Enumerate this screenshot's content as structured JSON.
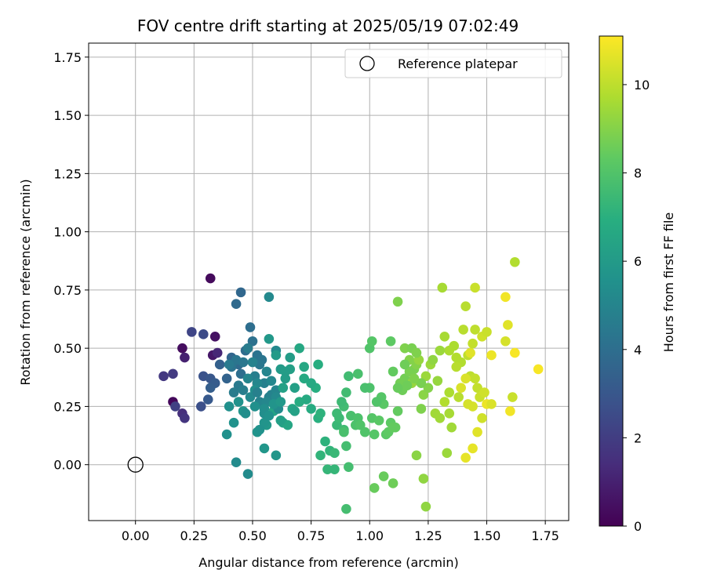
{
  "chart_data": {
    "type": "scatter",
    "title": "FOV centre drift starting at 2025/05/19 07:02:49",
    "xlabel": "Angular distance from reference (arcmin)",
    "ylabel": "Rotation from reference (arcmin)",
    "xlim": [
      -0.2,
      1.85
    ],
    "ylim": [
      -0.24,
      1.81
    ],
    "x_ticks": [
      0.0,
      0.25,
      0.5,
      0.75,
      1.0,
      1.25,
      1.5,
      1.75
    ],
    "y_ticks": [
      0.0,
      0.25,
      0.5,
      0.75,
      1.0,
      1.25,
      1.5,
      1.75
    ],
    "x_tick_labels": [
      "0.00",
      "0.25",
      "0.50",
      "0.75",
      "1.00",
      "1.25",
      "1.50",
      "1.75"
    ],
    "y_tick_labels": [
      "0.00",
      "0.25",
      "0.50",
      "0.75",
      "1.00",
      "1.25",
      "1.50",
      "1.75"
    ],
    "grid": true,
    "legend": {
      "placement": "upper-right",
      "entries": [
        "Reference platepar"
      ]
    },
    "reference_point": {
      "name": "Reference platepar",
      "x": 0.0,
      "y": 0.0
    },
    "colorbar": {
      "label": "Hours from first FF file",
      "range": [
        0,
        11.1
      ],
      "ticks": [
        0,
        2,
        4,
        6,
        8,
        10
      ],
      "tick_labels": [
        "0",
        "2",
        "4",
        "6",
        "8",
        "10"
      ],
      "colormap": "viridis"
    },
    "points": [
      [
        0.16,
        0.27,
        0.2
      ],
      [
        0.32,
        0.8,
        0.3
      ],
      [
        0.2,
        0.5,
        0.4
      ],
      [
        0.34,
        0.55,
        0.5
      ],
      [
        0.33,
        0.47,
        0.7
      ],
      [
        0.21,
        0.46,
        1.0
      ],
      [
        0.35,
        0.48,
        1.2
      ],
      [
        0.2,
        0.22,
        1.5
      ],
      [
        0.21,
        0.2,
        1.7
      ],
      [
        0.12,
        0.38,
        1.8
      ],
      [
        0.16,
        0.39,
        1.9
      ],
      [
        0.17,
        0.25,
        2.1
      ],
      [
        0.24,
        0.57,
        2.3
      ],
      [
        0.29,
        0.56,
        2.5
      ],
      [
        0.28,
        0.25,
        2.7
      ],
      [
        0.29,
        0.38,
        2.8
      ],
      [
        0.32,
        0.37,
        3.0
      ],
      [
        0.31,
        0.28,
        3.1
      ],
      [
        0.34,
        0.35,
        3.2
      ],
      [
        0.32,
        0.33,
        3.3
      ],
      [
        0.36,
        0.43,
        3.4
      ],
      [
        0.39,
        0.37,
        3.5
      ],
      [
        0.41,
        0.46,
        3.6
      ],
      [
        0.45,
        0.74,
        3.7
      ],
      [
        0.43,
        0.69,
        3.8
      ],
      [
        0.44,
        0.43,
        3.8
      ],
      [
        0.47,
        0.49,
        3.9
      ],
      [
        0.45,
        0.39,
        4.0
      ],
      [
        0.49,
        0.59,
        4.0
      ],
      [
        0.5,
        0.53,
        4.1
      ],
      [
        0.52,
        0.47,
        4.2
      ],
      [
        0.41,
        0.42,
        4.2
      ],
      [
        0.43,
        0.45,
        4.3
      ],
      [
        0.54,
        0.45,
        4.3
      ],
      [
        0.53,
        0.43,
        4.4
      ],
      [
        0.46,
        0.44,
        4.4
      ],
      [
        0.4,
        0.43,
        4.5
      ],
      [
        0.44,
        0.34,
        4.5
      ],
      [
        0.48,
        0.5,
        4.6
      ],
      [
        0.42,
        0.31,
        4.6
      ],
      [
        0.46,
        0.32,
        4.7
      ],
      [
        0.51,
        0.38,
        4.7
      ],
      [
        0.55,
        0.35,
        4.8
      ],
      [
        0.57,
        0.29,
        4.8
      ],
      [
        0.53,
        0.27,
        4.9
      ],
      [
        0.58,
        0.3,
        4.9
      ],
      [
        0.54,
        0.26,
        5.0
      ],
      [
        0.6,
        0.32,
        5.0
      ],
      [
        0.52,
        0.35,
        5.1
      ],
      [
        0.56,
        0.27,
        5.1
      ],
      [
        0.6,
        0.49,
        5.2
      ],
      [
        0.57,
        0.72,
        5.2
      ],
      [
        0.43,
        0.01,
        5.3
      ],
      [
        0.48,
        -0.04,
        5.3
      ],
      [
        0.55,
        0.24,
        5.4
      ],
      [
        0.51,
        0.32,
        5.4
      ],
      [
        0.4,
        0.25,
        5.5
      ],
      [
        0.39,
        0.13,
        5.5
      ],
      [
        0.42,
        0.18,
        5.6
      ],
      [
        0.44,
        0.27,
        5.6
      ],
      [
        0.46,
        0.23,
        5.7
      ],
      [
        0.52,
        0.14,
        5.7
      ],
      [
        0.55,
        0.07,
        5.8
      ],
      [
        0.6,
        0.04,
        5.8
      ],
      [
        0.56,
        0.17,
        5.9
      ],
      [
        0.57,
        0.54,
        5.9
      ],
      [
        0.6,
        0.47,
        6.0
      ],
      [
        0.62,
        0.41,
        6.0
      ],
      [
        0.64,
        0.37,
        6.1
      ],
      [
        0.66,
        0.46,
        6.1
      ],
      [
        0.68,
        0.33,
        6.2
      ],
      [
        0.66,
        0.41,
        6.2
      ],
      [
        0.63,
        0.33,
        6.3
      ],
      [
        0.61,
        0.26,
        6.3
      ],
      [
        0.59,
        0.23,
        6.4
      ],
      [
        0.63,
        0.18,
        6.4
      ],
      [
        0.65,
        0.17,
        6.5
      ],
      [
        0.67,
        0.24,
        6.5
      ],
      [
        0.7,
        0.5,
        6.6
      ],
      [
        0.72,
        0.42,
        6.6
      ],
      [
        0.72,
        0.37,
        6.7
      ],
      [
        0.73,
        0.28,
        6.7
      ],
      [
        0.7,
        0.27,
        6.8
      ],
      [
        0.75,
        0.24,
        6.8
      ],
      [
        0.77,
        0.33,
        6.9
      ],
      [
        0.78,
        0.43,
        6.9
      ],
      [
        0.78,
        0.2,
        7.0
      ],
      [
        0.79,
        0.22,
        7.1
      ],
      [
        0.81,
        0.1,
        7.1
      ],
      [
        0.79,
        0.04,
        7.2
      ],
      [
        0.83,
        0.06,
        7.2
      ],
      [
        0.82,
        -0.02,
        7.3
      ],
      [
        0.85,
        -0.02,
        7.3
      ],
      [
        0.85,
        0.05,
        7.4
      ],
      [
        0.86,
        0.17,
        7.4
      ],
      [
        0.87,
        0.2,
        7.5
      ],
      [
        0.86,
        0.22,
        7.5
      ],
      [
        0.89,
        0.25,
        7.6
      ],
      [
        0.89,
        0.15,
        7.6
      ],
      [
        0.9,
        0.08,
        7.7
      ],
      [
        0.91,
        -0.01,
        7.7
      ],
      [
        0.9,
        -0.19,
        7.7
      ],
      [
        0.89,
        0.14,
        7.8
      ],
      [
        0.92,
        0.21,
        7.8
      ],
      [
        0.94,
        0.17,
        7.9
      ],
      [
        0.95,
        0.2,
        7.9
      ],
      [
        0.96,
        0.17,
        8.0
      ],
      [
        0.98,
        0.14,
        8.0
      ],
      [
        1.01,
        0.2,
        8.1
      ],
      [
        1.02,
        0.13,
        8.1
      ],
      [
        1.04,
        0.19,
        8.2
      ],
      [
        1.07,
        0.13,
        8.2
      ],
      [
        1.08,
        0.14,
        8.3
      ],
      [
        1.09,
        0.18,
        8.3
      ],
      [
        1.1,
        0.16,
        8.4
      ],
      [
        1.11,
        0.16,
        8.4
      ],
      [
        1.02,
        -0.1,
        8.5
      ],
      [
        1.06,
        -0.05,
        8.5
      ],
      [
        1.1,
        -0.08,
        8.6
      ],
      [
        1.14,
        0.32,
        8.6
      ],
      [
        1.13,
        0.35,
        8.7
      ],
      [
        1.15,
        0.37,
        8.7
      ],
      [
        1.17,
        0.4,
        8.8
      ],
      [
        1.19,
        0.41,
        8.8
      ],
      [
        1.12,
        0.7,
        8.9
      ],
      [
        1.15,
        0.5,
        8.9
      ],
      [
        1.17,
        0.45,
        9.0
      ],
      [
        1.2,
        0.43,
        9.0
      ],
      [
        1.23,
        0.3,
        9.1
      ],
      [
        1.2,
        0.04,
        9.1
      ],
      [
        1.23,
        -0.06,
        9.2
      ],
      [
        1.24,
        -0.18,
        9.2
      ],
      [
        1.18,
        0.35,
        9.3
      ],
      [
        1.21,
        0.45,
        9.3
      ],
      [
        1.24,
        0.38,
        9.4
      ],
      [
        1.26,
        0.43,
        9.4
      ],
      [
        1.28,
        0.22,
        9.5
      ],
      [
        1.3,
        0.2,
        9.5
      ],
      [
        1.31,
        0.76,
        9.6
      ],
      [
        1.32,
        0.55,
        9.6
      ],
      [
        1.34,
        0.49,
        9.7
      ],
      [
        1.36,
        0.51,
        9.7
      ],
      [
        1.37,
        0.46,
        9.8
      ],
      [
        1.39,
        0.44,
        9.8
      ],
      [
        1.4,
        0.58,
        9.9
      ],
      [
        1.41,
        0.68,
        9.9
      ],
      [
        1.42,
        0.47,
        10.0
      ],
      [
        1.43,
        0.38,
        10.0
      ],
      [
        1.45,
        0.37,
        10.1
      ],
      [
        1.46,
        0.33,
        10.1
      ],
      [
        1.47,
        0.29,
        10.2
      ],
      [
        1.45,
        0.76,
        10.2
      ],
      [
        1.48,
        0.55,
        10.3
      ],
      [
        1.49,
        0.31,
        10.3
      ],
      [
        1.44,
        0.25,
        10.4
      ],
      [
        1.42,
        0.26,
        10.4
      ],
      [
        1.39,
        0.33,
        10.5
      ],
      [
        1.41,
        0.37,
        10.5
      ],
      [
        1.43,
        0.48,
        10.6
      ],
      [
        1.46,
        0.14,
        10.6
      ],
      [
        1.44,
        0.07,
        10.7
      ],
      [
        1.41,
        0.03,
        10.7
      ],
      [
        1.5,
        0.26,
        10.8
      ],
      [
        1.52,
        0.47,
        10.8
      ],
      [
        1.58,
        0.72,
        10.9
      ],
      [
        1.6,
        0.23,
        10.9
      ],
      [
        1.62,
        0.48,
        11.0
      ],
      [
        1.72,
        0.41,
        11.0
      ],
      [
        1.62,
        0.87,
        9.8
      ],
      [
        1.61,
        0.29,
        10.2
      ],
      [
        1.58,
        0.53,
        10.4
      ],
      [
        1.59,
        0.6,
        10.6
      ],
      [
        1.34,
        0.22,
        9.6
      ],
      [
        1.33,
        0.05,
        9.4
      ],
      [
        1.35,
        0.16,
        9.5
      ],
      [
        1.37,
        0.42,
        9.9
      ],
      [
        1.38,
        0.29,
        9.9
      ],
      [
        1.44,
        0.52,
        10.1
      ],
      [
        1.45,
        0.58,
        10.0
      ],
      [
        1.5,
        0.57,
        10.2
      ],
      [
        1.48,
        0.2,
        10.3
      ],
      [
        1.52,
        0.26,
        10.5
      ],
      [
        1.34,
        0.31,
        9.7
      ],
      [
        1.32,
        0.27,
        9.8
      ],
      [
        1.3,
        0.49,
        9.4
      ],
      [
        1.27,
        0.45,
        9.2
      ],
      [
        1.29,
        0.36,
        9.3
      ],
      [
        1.25,
        0.33,
        9.0
      ],
      [
        1.22,
        0.24,
        8.9
      ],
      [
        1.22,
        0.35,
        8.8
      ],
      [
        1.16,
        0.34,
        8.6
      ],
      [
        1.12,
        0.33,
        8.5
      ],
      [
        1.1,
        0.4,
        8.4
      ],
      [
        1.06,
        0.26,
        8.2
      ],
      [
        1.05,
        0.29,
        8.1
      ],
      [
        1.03,
        0.27,
        8.0
      ],
      [
        1.0,
        0.33,
        7.9
      ],
      [
        0.98,
        0.33,
        7.8
      ],
      [
        0.95,
        0.39,
        7.8
      ],
      [
        0.91,
        0.38,
        7.6
      ],
      [
        0.88,
        0.27,
        7.5
      ],
      [
        0.9,
        0.31,
        7.6
      ],
      [
        1.0,
        0.5,
        8.0
      ],
      [
        1.01,
        0.53,
        8.1
      ],
      [
        1.09,
        0.53,
        8.3
      ],
      [
        1.12,
        0.23,
        8.4
      ],
      [
        1.15,
        0.43,
        8.6
      ],
      [
        1.18,
        0.5,
        8.8
      ],
      [
        1.2,
        0.48,
        8.9
      ],
      [
        1.19,
        0.37,
        8.9
      ],
      [
        0.68,
        0.23,
        6.3
      ],
      [
        0.75,
        0.35,
        6.7
      ],
      [
        0.64,
        0.4,
        6.1
      ],
      [
        0.62,
        0.19,
        6.2
      ],
      [
        0.55,
        0.18,
        5.7
      ],
      [
        0.53,
        0.15,
        5.6
      ],
      [
        0.51,
        0.25,
        5.5
      ],
      [
        0.47,
        0.22,
        5.4
      ],
      [
        0.49,
        0.29,
        5.2
      ],
      [
        0.48,
        0.37,
        5.0
      ],
      [
        0.5,
        0.44,
        4.9
      ],
      [
        0.52,
        0.31,
        4.8
      ],
      [
        0.56,
        0.4,
        5.0
      ],
      [
        0.58,
        0.36,
        5.1
      ],
      [
        0.6,
        0.29,
        5.2
      ],
      [
        0.61,
        0.24,
        5.3
      ],
      [
        0.55,
        0.22,
        5.4
      ],
      [
        0.57,
        0.21,
        5.6
      ],
      [
        0.59,
        0.26,
        5.7
      ],
      [
        0.62,
        0.27,
        5.9
      ]
    ]
  }
}
